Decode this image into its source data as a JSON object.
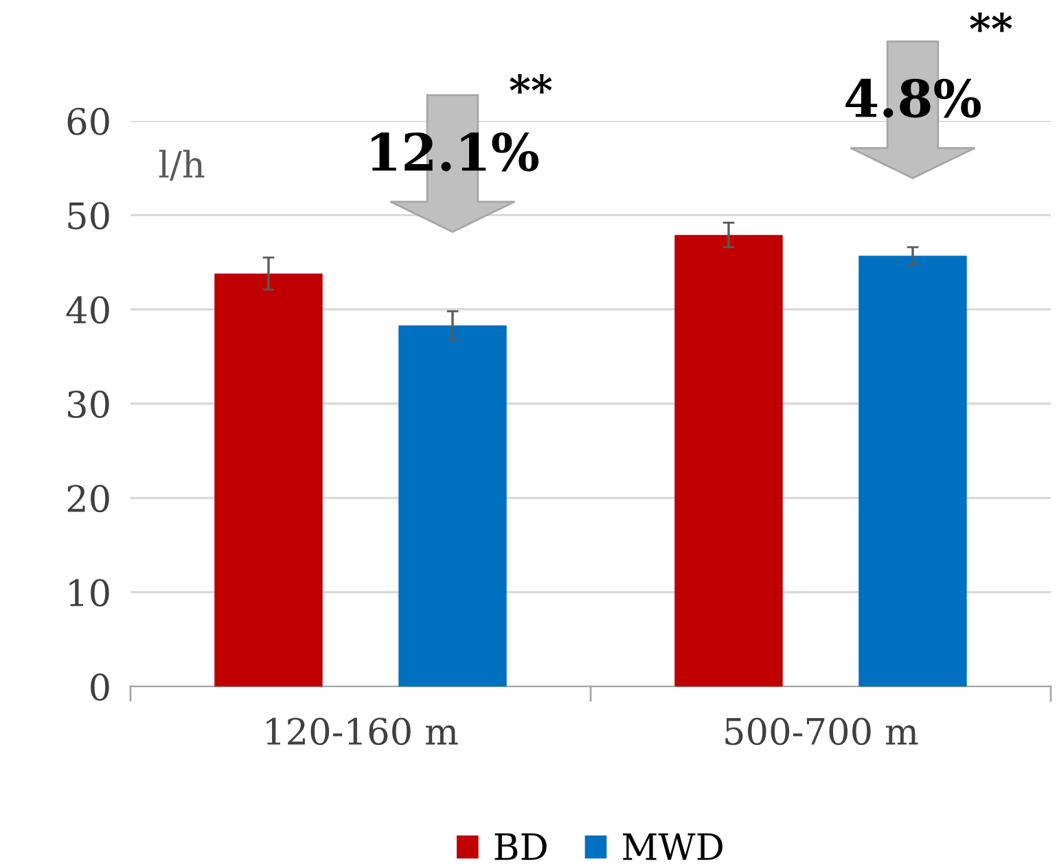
{
  "chart_data": {
    "type": "bar",
    "ylabel": "l/h",
    "categories": [
      "120-160 m",
      "500-700 m"
    ],
    "series": [
      {
        "name": "BD",
        "color": "#c00000",
        "values": [
          43.8,
          47.9
        ],
        "errors": [
          1.7,
          1.3
        ]
      },
      {
        "name": "MWD",
        "color": "#0070c0",
        "values": [
          38.3,
          45.7
        ],
        "errors": [
          1.5,
          0.9
        ]
      }
    ],
    "ylim": [
      0,
      60
    ],
    "yticks": [
      0,
      10,
      20,
      30,
      40,
      50,
      60
    ],
    "grid": "y",
    "legend": "bottom",
    "annotations": [
      "12.1%",
      "**",
      "4.8%",
      "**"
    ]
  }
}
